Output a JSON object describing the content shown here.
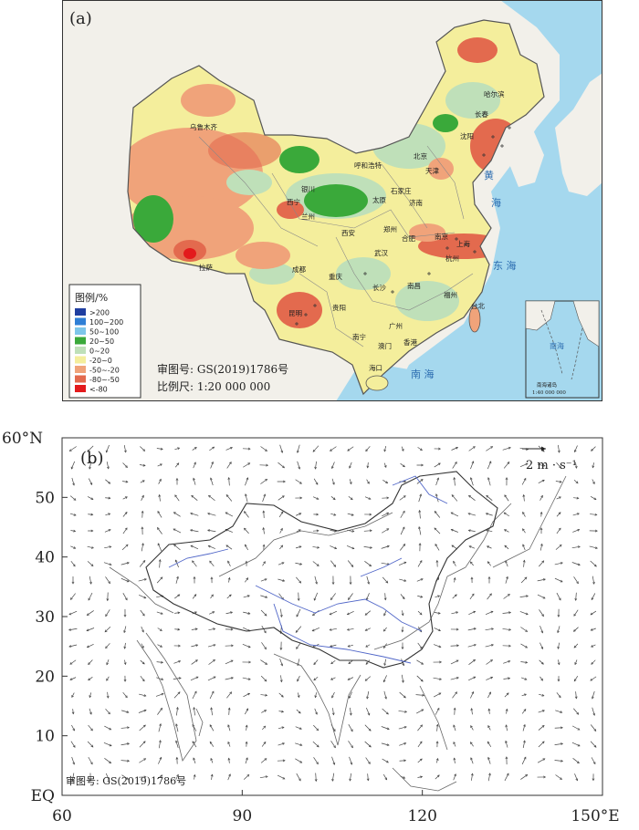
{
  "panel_a": {
    "label": "(a)",
    "legend": {
      "title": "图例/%",
      "items": [
        {
          "label": ">200",
          "color": "#1f3ea0"
        },
        {
          "label": "100~200",
          "color": "#2f7fd6"
        },
        {
          "label": "50~100",
          "color": "#7ec6ea"
        },
        {
          "label": "20~50",
          "color": "#3aa93a"
        },
        {
          "label": "0~20",
          "color": "#bfe0b9"
        },
        {
          "label": "-20~0",
          "color": "#f4ee9c"
        },
        {
          "label": "-50~-20",
          "color": "#f0a37a"
        },
        {
          "label": "-80~-50",
          "color": "#e36a4e"
        },
        {
          "label": "<-80",
          "color": "#e31a1c"
        }
      ]
    },
    "map_number": "审图号: GS(2019)1786号",
    "scale": "比例尺: 1:20 000 000",
    "inset_scale": "1:40 000 000",
    "inset_title": "南海诸岛",
    "sea_labels": [
      "黄",
      "海",
      "东 海",
      "南 海"
    ],
    "cities": [
      "乌鲁木齐",
      "哈尔滨",
      "长春",
      "沈阳",
      "呼和浩特",
      "北京",
      "天津",
      "银川",
      "石家庄",
      "太原",
      "济南",
      "西宁",
      "兰州",
      "郑州",
      "西安",
      "合肥",
      "南京",
      "上海",
      "成都",
      "武汉",
      "杭州",
      "重庆",
      "长沙",
      "南昌",
      "贵阳",
      "福州",
      "昆明",
      "台北",
      "广州",
      "南宁",
      "香港",
      "澳门",
      "海口",
      "拉萨"
    ],
    "colors": {
      "sea": "#a5d8ee",
      "land_outside": "#f2f0ea",
      "border": "#555555"
    }
  },
  "panel_b": {
    "label": "(b)",
    "x_ticks": [
      "60",
      "90",
      "120",
      "150°E"
    ],
    "y_ticks": [
      "60°N",
      "50",
      "40",
      "30",
      "20",
      "10",
      "EQ"
    ],
    "reference_vector": "2 m · s⁻¹",
    "map_number": "审图号: GS(2019)1786号",
    "xlim": [
      60,
      150
    ],
    "ylim": [
      0,
      60
    ],
    "colors": {
      "arrow": "#444444",
      "river": "#5066c8",
      "coast": "#666666"
    }
  }
}
